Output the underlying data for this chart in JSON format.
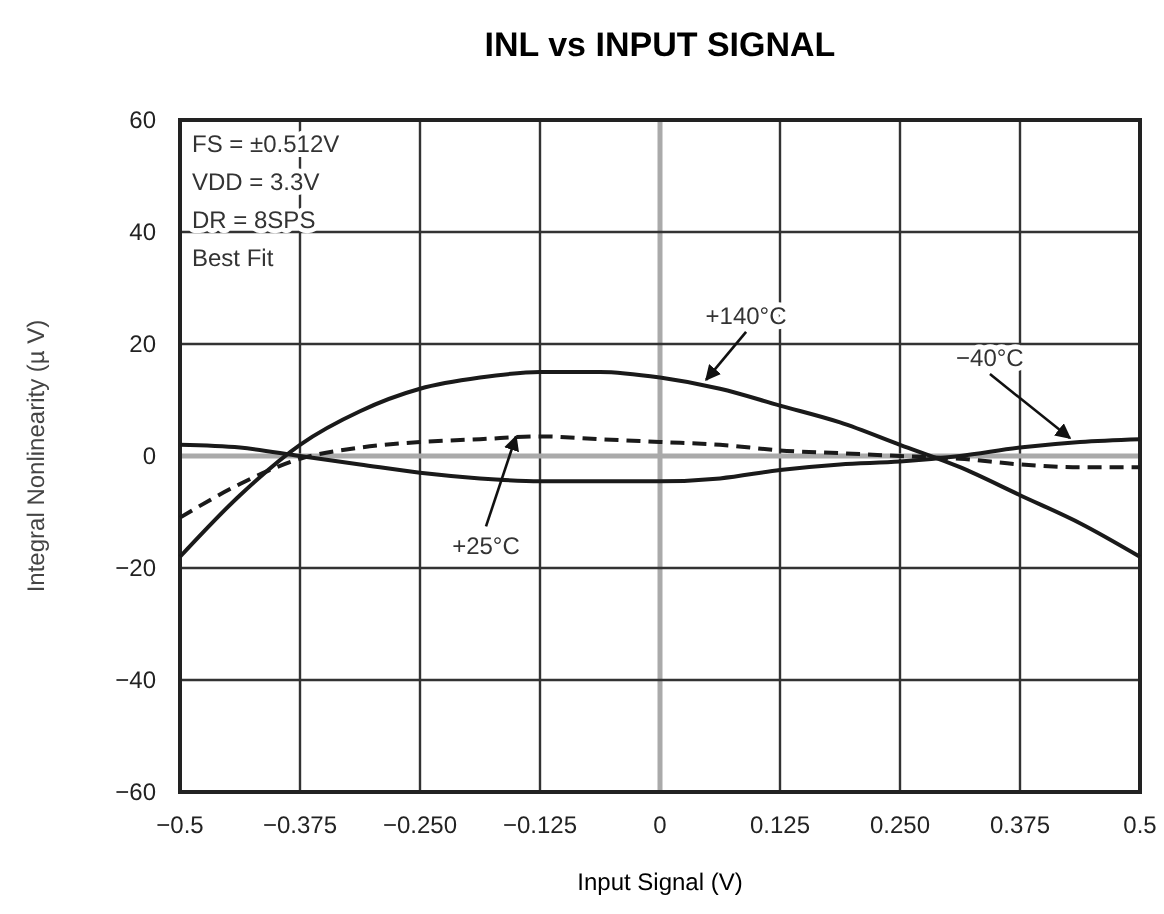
{
  "chart_data": {
    "type": "line",
    "title": "INL vs INPUT SIGNAL",
    "xlabel": "Input Signal (V)",
    "ylabel": "Integral Nonlinearity (µ V)",
    "xlim": [
      -0.5,
      0.5
    ],
    "xticks": [
      {
        "value": -0.5,
        "label": "−0.5"
      },
      {
        "value": -0.375,
        "label": "−0.375"
      },
      {
        "value": -0.25,
        "label": "−0.250"
      },
      {
        "value": -0.125,
        "label": "−0.125"
      },
      0,
      0.125,
      {
        "value": 0.25,
        "label": "0.250"
      },
      0.375,
      0.5
    ],
    "ylim": [
      -60,
      60
    ],
    "yticks": [
      {
        "value": -60,
        "label": "−60"
      },
      {
        "value": -40,
        "label": "−40"
      },
      {
        "value": -20,
        "label": "−20"
      },
      0,
      20,
      40,
      60
    ],
    "grid": true,
    "series": [
      {
        "color": "#1a1a1a",
        "line_style": "solid",
        "x": [
          -0.5,
          -0.4375,
          -0.375,
          -0.3125,
          -0.25,
          -0.1875,
          -0.125,
          -0.0625,
          0,
          0.0625,
          0.125,
          0.1875,
          0.25,
          0.3125,
          0.375,
          0.4375,
          0.5
        ],
        "values": [
          -18,
          -7,
          2,
          8,
          12,
          14,
          15,
          15,
          14,
          12,
          9,
          6,
          2,
          -2,
          -7,
          -12,
          -18
        ]
      },
      {
        "color": "#1a1a1a",
        "line_style": "solid",
        "x": [
          -0.5,
          -0.4375,
          -0.375,
          -0.3125,
          -0.25,
          -0.1875,
          -0.125,
          -0.0625,
          0,
          0.0625,
          0.125,
          0.1875,
          0.25,
          0.3125,
          0.375,
          0.4375,
          0.5
        ],
        "values": [
          2,
          1.5,
          0,
          -1.5,
          -3,
          -4,
          -4.5,
          -4.5,
          -4.5,
          -4,
          -2.5,
          -1.5,
          -1,
          0,
          1.5,
          2.5,
          3
        ]
      },
      {
        "color": "#1a1a1a",
        "line_style": "dashed",
        "x": [
          -0.5,
          -0.4375,
          -0.375,
          -0.3125,
          -0.25,
          -0.1875,
          -0.125,
          -0.0625,
          0,
          0.0625,
          0.125,
          0.1875,
          0.25,
          0.3125,
          0.375,
          0.4375,
          0.5
        ],
        "values": [
          -11,
          -5,
          -0.5,
          1.5,
          2.5,
          3,
          3.5,
          3,
          2.5,
          2,
          1,
          0.5,
          0,
          -0.5,
          -1.5,
          -2,
          -2
        ]
      }
    ],
    "annotations": [
      "FS = ±0.512V",
      "VDD = 3.3V",
      "DR = 8SPS",
      "Best Fit",
      {
        "text": "+140°C",
        "x": 0.048,
        "y": 13.6
      },
      {
        "text": "−40°C",
        "x": 0.427,
        "y": 3.2
      },
      {
        "text": "+25°C",
        "x": -0.15,
        "y": 3.5
      }
    ]
  }
}
